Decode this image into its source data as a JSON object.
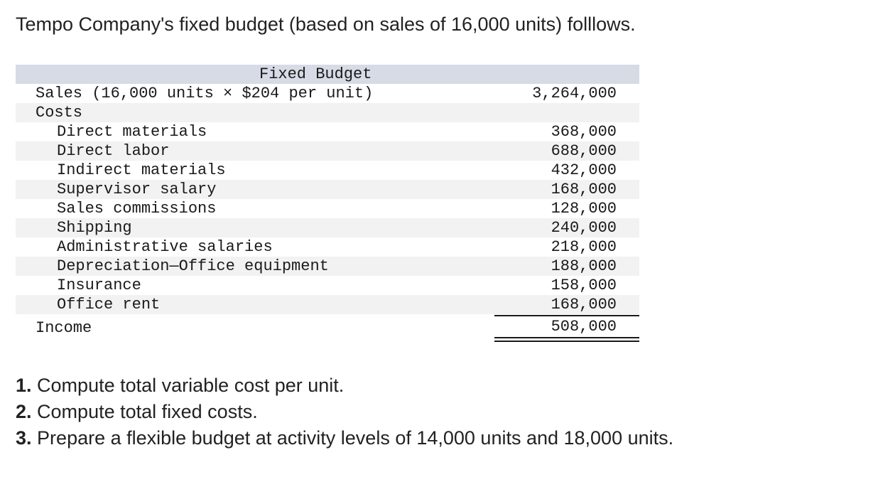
{
  "intro": "Tempo Company's fixed budget (based on sales of 16,000 units) folllows.",
  "budget": {
    "header": "Fixed Budget",
    "sales": {
      "label": "Sales (16,000 units × $204 per unit)",
      "amount": "3,264,000"
    },
    "costs_label": "Costs",
    "costs": [
      {
        "label": "Direct materials",
        "amount": "368,000"
      },
      {
        "label": "Direct labor",
        "amount": "688,000"
      },
      {
        "label": "Indirect materials",
        "amount": "432,000"
      },
      {
        "label": "Supervisor salary",
        "amount": "168,000"
      },
      {
        "label": "Sales commissions",
        "amount": "128,000"
      },
      {
        "label": "Shipping",
        "amount": "240,000"
      },
      {
        "label": "Administrative salaries",
        "amount": "218,000"
      },
      {
        "label": "Depreciation—Office equipment",
        "amount": "188,000"
      },
      {
        "label": "Insurance",
        "amount": "158,000"
      },
      {
        "label": "Office rent",
        "amount": "168,000"
      }
    ],
    "income": {
      "label": "Income",
      "amount": "508,000"
    }
  },
  "questions": [
    {
      "number": "1.",
      "text": "Compute total variable cost per unit."
    },
    {
      "number": "2.",
      "text": "Compute total fixed costs."
    },
    {
      "number": "3.",
      "text": "Prepare a flexible budget at activity levels of 14,000 units and 18,000 units."
    }
  ]
}
